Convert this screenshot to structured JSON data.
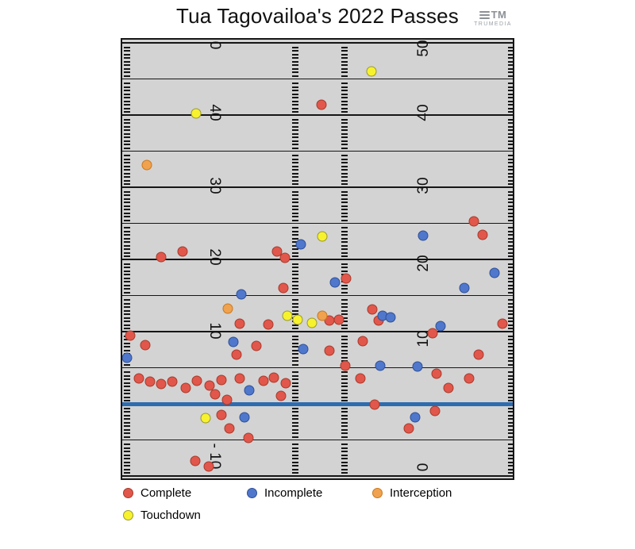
{
  "title": "Tua Tagovailoa's 2022 Passes",
  "logo": {
    "monogram": "TM",
    "caption": "TRUMEDIA"
  },
  "colors": {
    "complete": "#e2574b",
    "complete_stroke": "#a63a2c",
    "incomplete": "#4f78cc",
    "incomplete_stroke": "#2d4f99",
    "interception": "#f0a24e",
    "interception_stroke": "#c8781f",
    "touchdown": "#f7f22e",
    "touchdown_stroke": "#99992e",
    "field_bg": "#d3d3d3",
    "line": "#161616",
    "scrimmage": "#2e6cb0"
  },
  "legend": [
    {
      "label": "Complete",
      "key": "complete"
    },
    {
      "label": "Incomplete",
      "key": "incomplete"
    },
    {
      "label": "Interception",
      "key": "interception"
    },
    {
      "label": "Touchdown",
      "key": "touchdown"
    }
  ],
  "field": {
    "yard_numbers": [
      {
        "side": "left",
        "label": "0",
        "yd": 49.7
      },
      {
        "side": "left",
        "label": "40",
        "yd": 40.3
      },
      {
        "side": "left",
        "label": "30",
        "yd": 30.2
      },
      {
        "side": "left",
        "label": "20",
        "yd": 20.3
      },
      {
        "side": "left",
        "label": "10",
        "yd": 10.1
      },
      {
        "side": "left",
        "label": "- 10",
        "yd": -7.3
      },
      {
        "side": "right",
        "label": "50",
        "yd": 49.2
      },
      {
        "side": "right",
        "label": "40",
        "yd": 40.3
      },
      {
        "side": "right",
        "label": "30",
        "yd": 30.2
      },
      {
        "side": "right",
        "label": "20",
        "yd": 19.5
      },
      {
        "side": "right",
        "label": "10",
        "yd": 9.0
      },
      {
        "side": "right",
        "label": "0",
        "yd": -8.8
      }
    ]
  },
  "chart_data": {
    "type": "scatter",
    "title": "Tua Tagovailoa's 2022 Passes",
    "x_unit": "yards_from_left_sideline",
    "y_unit": "yards_downfield_from_line_of_scrimmage",
    "xlim": [
      0,
      54.5
    ],
    "ylim": [
      -10.5,
      50.8
    ],
    "yard_line_interval": 5,
    "line_of_scrimmage_y": 0,
    "legend_position": "bottom",
    "series": [
      {
        "name": "Complete",
        "key": "complete",
        "points": [
          [
            27.6,
            41.4
          ],
          [
            48.7,
            25.3
          ],
          [
            49.9,
            23.4
          ],
          [
            21.4,
            21.1
          ],
          [
            8.4,
            21.1
          ],
          [
            5.4,
            20.3
          ],
          [
            22.5,
            20.2
          ],
          [
            31,
            17.4
          ],
          [
            22.3,
            16
          ],
          [
            16.3,
            11.1
          ],
          [
            20.2,
            11
          ],
          [
            28.7,
            11.5
          ],
          [
            30,
            11.6
          ],
          [
            34.6,
            13.1
          ],
          [
            35.5,
            11.5
          ],
          [
            43,
            9.8
          ],
          [
            52.6,
            11.1
          ],
          [
            1.1,
            9.5
          ],
          [
            3.2,
            8.1
          ],
          [
            15.8,
            6.8
          ],
          [
            18.6,
            8
          ],
          [
            28.7,
            7.4
          ],
          [
            33.3,
            8.7
          ],
          [
            30.9,
            5.3
          ],
          [
            2.3,
            3.5
          ],
          [
            3.8,
            3.1
          ],
          [
            5.4,
            2.7
          ],
          [
            6.9,
            3.1
          ],
          [
            8.8,
            2.2
          ],
          [
            10.3,
            3.2
          ],
          [
            12.1,
            2.5
          ],
          [
            13.7,
            3.3
          ],
          [
            16.3,
            3.5
          ],
          [
            19.6,
            3.2
          ],
          [
            21,
            3.6
          ],
          [
            22.6,
            2.9
          ],
          [
            12.9,
            1.3
          ],
          [
            14.5,
            0.5
          ],
          [
            22,
            1.1
          ],
          [
            33,
            3.5
          ],
          [
            34.9,
            -0.1
          ],
          [
            43.5,
            4.2
          ],
          [
            45.2,
            2.2
          ],
          [
            48,
            3.5
          ],
          [
            49.3,
            6.8
          ],
          [
            13.7,
            -1.5
          ],
          [
            14.8,
            -3.4
          ],
          [
            17.5,
            -4.7
          ],
          [
            39.7,
            -3.4
          ],
          [
            43.3,
            -1
          ],
          [
            10.1,
            -7.9
          ],
          [
            12,
            -8.7
          ]
        ]
      },
      {
        "name": "Incomplete",
        "key": "incomplete",
        "points": [
          [
            41.6,
            23.3
          ],
          [
            24.7,
            22.1
          ],
          [
            29.5,
            16.8
          ],
          [
            47.4,
            16
          ],
          [
            51.5,
            18.1
          ],
          [
            16.5,
            15.2
          ],
          [
            36,
            12.2
          ],
          [
            37.1,
            12
          ],
          [
            44.1,
            10.8
          ],
          [
            0.7,
            6.4
          ],
          [
            15.4,
            8.6
          ],
          [
            25.1,
            7.6
          ],
          [
            35.7,
            5.3
          ],
          [
            40.9,
            5.2
          ],
          [
            17.6,
            1.9
          ],
          [
            16.9,
            -1.9
          ],
          [
            40.5,
            -1.9
          ]
        ]
      },
      {
        "name": "Interception",
        "key": "interception",
        "points": [
          [
            3.4,
            33.1
          ],
          [
            14.6,
            13.2
          ],
          [
            27.7,
            12.2
          ]
        ]
      },
      {
        "name": "Touchdown",
        "key": "touchdown",
        "points": [
          [
            34.5,
            46
          ],
          [
            10.2,
            40.2
          ],
          [
            27.7,
            23.2
          ],
          [
            22.9,
            12.2
          ],
          [
            24.3,
            11.6
          ],
          [
            26.3,
            11.2
          ],
          [
            11.5,
            -2
          ]
        ]
      }
    ]
  }
}
